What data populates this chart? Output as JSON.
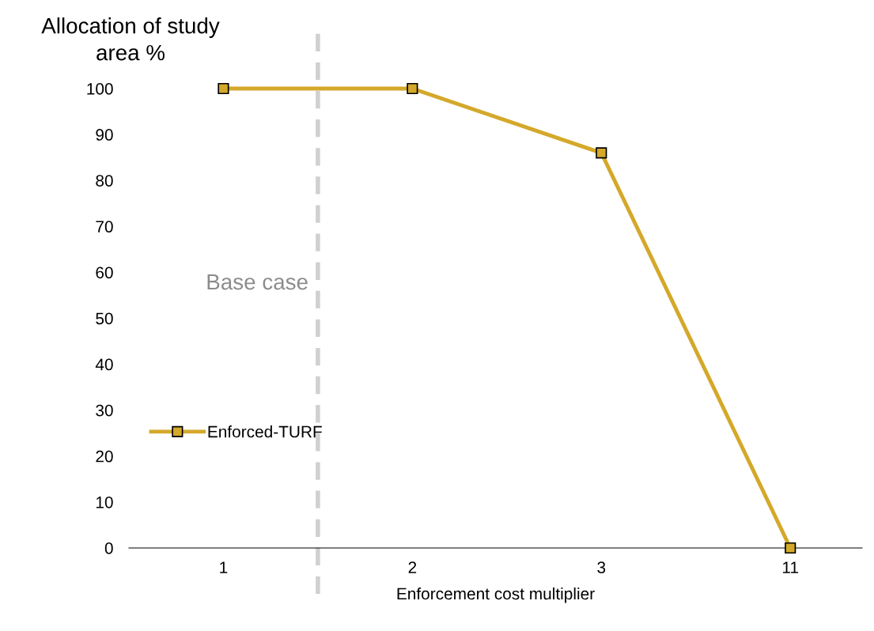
{
  "chart_data": {
    "type": "line",
    "ylabel": "Allocation of study\narea %",
    "xlabel": "Enforcement cost multiplier",
    "categories": [
      "1",
      "2",
      "3",
      "11"
    ],
    "series": [
      {
        "name": "Enforced-TURF",
        "color": "#d4a82a",
        "values": [
          100,
          100,
          86,
          0
        ]
      }
    ],
    "ylim": [
      0,
      100
    ],
    "yticks": [
      0,
      10,
      20,
      30,
      40,
      50,
      60,
      70,
      80,
      90,
      100
    ],
    "annotations": [
      "Base case"
    ],
    "marker": "square",
    "line_style": "solid",
    "legend": "left",
    "grid": false
  }
}
